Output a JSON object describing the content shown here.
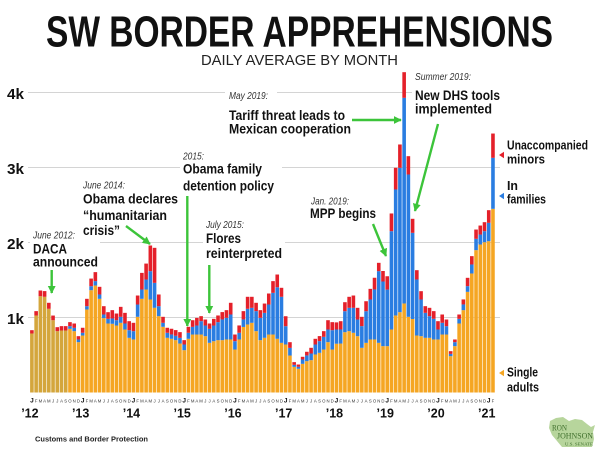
{
  "header": {
    "title": "SW BORDER APPREHENSIONS",
    "subtitle": "DAILY AVERAGE BY MONTH"
  },
  "footer": {
    "source": "Customs and Border Protection"
  },
  "logo": {
    "icon": "wisconsin-state-icon",
    "name_line1": "RON",
    "name_line2": "JOHNSON",
    "org": "U.S. SENATE"
  },
  "colors": {
    "single_adults": "#F5A623",
    "single_adults_fy2012": "#D4A63C",
    "families": "#2A7DE1",
    "unaccompanied_minors": "#E4202A",
    "annotation_arrow": "#3CC43A",
    "gridline": "#D4D4D4",
    "logo_green": "#B7D59C"
  },
  "chart_data": {
    "type": "bar",
    "stacked": true,
    "title": "SW BORDER APPREHENSIONS",
    "subtitle": "DAILY AVERAGE BY MONTH",
    "xlabel": "",
    "ylabel": "",
    "ylim": [
      0,
      4400
    ],
    "grid": true,
    "yticks": [
      1000,
      2000,
      3000,
      4000
    ],
    "ytick_labels": [
      "1k",
      "2k",
      "3k",
      "4k"
    ],
    "start_month": "2012-01",
    "end_month": "2021-02",
    "month_letters": [
      "J",
      "F",
      "M",
      "A",
      "M",
      "J",
      "J",
      "A",
      "S",
      "O",
      "N",
      "D"
    ],
    "year_labels": [
      "’12",
      "’13",
      "’14",
      "’15",
      "’16",
      "’17",
      "’18",
      "’19",
      "’20",
      "’21"
    ],
    "single_adults_alt_color": {
      "from": "2012-01",
      "to": "2012-09",
      "color": "#D4A63C"
    },
    "series": [
      {
        "name": "Single adults",
        "color": "#F5A623",
        "values": [
          787,
          1027,
          1284,
          1276,
          1116,
          964,
          818,
          827,
          827,
          849,
          818,
          671,
          760,
          1107,
          1364,
          1427,
          1249,
          991,
          920,
          916,
          893,
          929,
          840,
          729,
          707,
          1009,
          1249,
          1373,
          1240,
          1129,
          1018,
          876,
          729,
          716,
          698,
          653,
          564,
          716,
          773,
          773,
          773,
          751,
          662,
          684,
          698,
          698,
          707,
          707,
          573,
          707,
          874,
          907,
          929,
          818,
          698,
          729,
          773,
          773,
          716,
          662,
          640,
          493,
          342,
          316,
          382,
          418,
          431,
          507,
          529,
          573,
          671,
          573,
          650,
          653,
          804,
          818,
          796,
          751,
          596,
          662,
          707,
          707,
          662,
          618,
          618,
          840,
          1027,
          1071,
          1187,
          1009,
          980,
          760,
          751,
          729,
          729,
          707,
          707,
          773,
          773,
          484,
          618,
          920,
          1098,
          1342,
          1587,
          1898,
          1973,
          2004,
          2018,
          2449
        ]
      },
      {
        "name": "In families",
        "color": "#2A7DE1",
        "values": [
          0,
          0,
          0,
          0,
          0,
          0,
          0,
          0,
          0,
          36,
          44,
          36,
          36,
          44,
          53,
          58,
          58,
          49,
          62,
          71,
          71,
          80,
          80,
          102,
          111,
          164,
          124,
          133,
          378,
          333,
          133,
          53,
          67,
          58,
          58,
          76,
          76,
          80,
          102,
          120,
          178,
          142,
          187,
          209,
          240,
          276,
          289,
          333,
          111,
          89,
          100,
          209,
          200,
          267,
          298,
          333,
          400,
          556,
          687,
          614,
          244,
          102,
          27,
          27,
          58,
          76,
          89,
          133,
          156,
          169,
          169,
          258,
          190,
          187,
          280,
          311,
          333,
          222,
          289,
          422,
          533,
          667,
          956,
          862,
          754,
          1311,
          1680,
          1925,
          2742,
          1898,
          1149,
          747,
          489,
          333,
          289,
          276,
          133,
          156,
          111,
          31,
          53,
          62,
          76,
          76,
          120,
          151,
          133,
          147,
          244,
          680
        ]
      },
      {
        "name": "Unaccompanied minors",
        "color": "#E4202A",
        "values": [
          44,
          58,
          76,
          76,
          80,
          62,
          53,
          58,
          58,
          53,
          58,
          44,
          67,
          98,
          102,
          120,
          102,
          111,
          89,
          111,
          89,
          133,
          142,
          120,
          111,
          120,
          222,
          213,
          342,
          467,
          156,
          80,
          67,
          76,
          76,
          76,
          58,
          80,
          89,
          102,
          67,
          80,
          71,
          89,
          89,
          98,
          102,
          156,
          89,
          98,
          111,
          160,
          147,
          111,
          102,
          124,
          147,
          156,
          170,
          120,
          133,
          76,
          36,
          30,
          36,
          49,
          76,
          76,
          67,
          76,
          124,
          107,
          95,
          111,
          120,
          147,
          164,
          156,
          124,
          133,
          142,
          156,
          111,
          140,
          178,
          236,
          289,
          311,
          342,
          244,
          187,
          124,
          111,
          89,
          111,
          102,
          111,
          111,
          89,
          36,
          36,
          58,
          67,
          111,
          111,
          124,
          120,
          120,
          169,
          324
        ]
      }
    ],
    "legend": {
      "position": "right",
      "items": [
        {
          "series": "Unaccompanied minors",
          "label_lines": [
            "Unaccompanied",
            "minors"
          ]
        },
        {
          "series": "In families",
          "label_lines": [
            "In",
            "families"
          ]
        },
        {
          "series": "Single adults",
          "label_lines": [
            "Single",
            "adults"
          ]
        }
      ]
    },
    "annotations": [
      {
        "date": "June 2012:",
        "lines": [
          "DACA",
          "announced"
        ],
        "points_to": "2012-06"
      },
      {
        "date": "June 2014:",
        "lines": [
          "Obama declares",
          "“humanitarian",
          "crisis”"
        ],
        "points_to": "2014-06"
      },
      {
        "date": "2015:",
        "lines": [
          "Obama family",
          "detention policy"
        ],
        "points_to": "2015-02"
      },
      {
        "date": "July 2015:",
        "lines": [
          "Flores",
          "reinterpreted"
        ],
        "points_to": "2015-07"
      },
      {
        "date": "Jan. 2019:",
        "lines": [
          "MPP begins"
        ],
        "points_to": "2019-01"
      },
      {
        "date": "May 2019:",
        "lines": [
          "Tariff threat leads to",
          "Mexican cooperation"
        ],
        "points_to": "2019-05"
      },
      {
        "date": "Summer 2019:",
        "lines": [
          "New DHS tools",
          "implemented"
        ],
        "points_to": "2019-07"
      }
    ]
  }
}
